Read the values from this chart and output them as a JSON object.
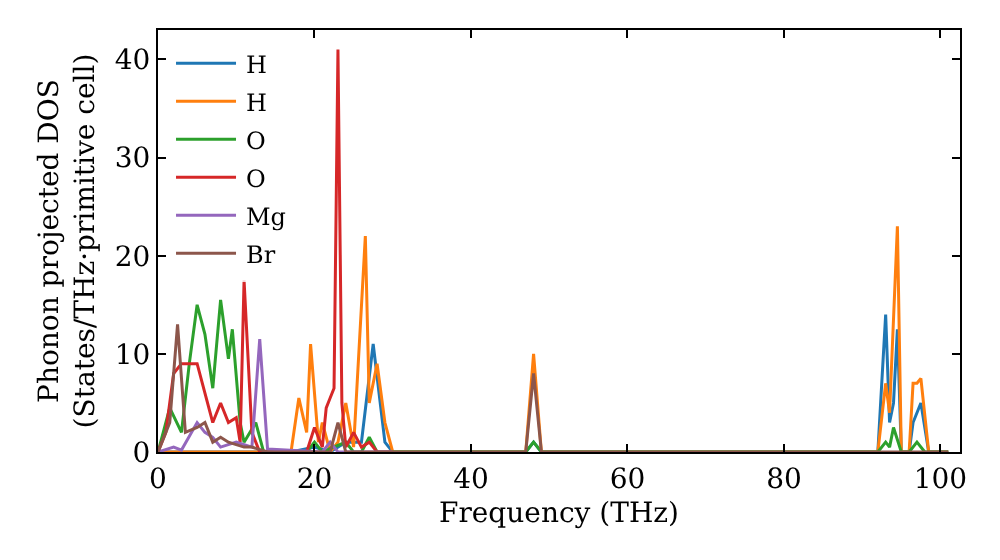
{
  "chart_data": {
    "type": "line",
    "xlabel": "Frequency (THz)",
    "ylabel": "Phonon projected DOS\n(States/THz·primitive cell)",
    "xlim": [
      0,
      102.5
    ],
    "ylim": [
      0,
      43
    ],
    "xticks": [
      0,
      20,
      40,
      60,
      80,
      100
    ],
    "yticks": [
      0,
      10,
      20,
      30,
      40
    ],
    "legend": "top left",
    "marker": "none",
    "line_style": "solid",
    "series": [
      {
        "name": "H",
        "color": "#1f77b4",
        "x": [
          0,
          17,
          20,
          22,
          24,
          26,
          27.5,
          29,
          30,
          47,
          48,
          49,
          92,
          93,
          93.5,
          94,
          94.5,
          95,
          96,
          96.5,
          97.5,
          98.5,
          101
        ],
        "values": [
          0,
          0,
          0.5,
          0,
          1,
          1,
          11,
          1,
          0,
          0,
          1,
          0,
          0,
          14,
          3,
          5,
          12.5,
          0,
          0,
          3,
          5,
          0,
          0
        ]
      },
      {
        "name": "H",
        "color": "#ff7f0e",
        "x": [
          0,
          17,
          18,
          19,
          19.5,
          20.5,
          21,
          22,
          23,
          24,
          25,
          26.5,
          27,
          28,
          29,
          30,
          47,
          48,
          49,
          92,
          93,
          93.5,
          94.5,
          95,
          96,
          96.5,
          97,
          97.5,
          98.5,
          101
        ],
        "values": [
          0,
          0,
          5.5,
          2,
          11,
          1,
          3,
          0,
          1,
          5,
          0.5,
          22,
          5,
          9,
          3,
          0,
          0,
          10,
          0,
          0,
          7,
          4,
          23,
          0,
          0,
          7,
          7,
          7.5,
          0,
          0
        ]
      },
      {
        "name": "O",
        "color": "#2ca02c",
        "x": [
          0,
          1.5,
          3,
          4,
          5,
          6,
          7,
          8,
          9,
          9.5,
          10.5,
          11,
          12.5,
          13.5,
          19,
          20,
          21,
          24,
          25,
          26,
          27,
          28,
          47,
          48,
          49,
          92,
          93,
          93.5,
          94,
          95,
          96,
          97,
          98,
          101
        ],
        "values": [
          0,
          4.5,
          2,
          9,
          15,
          12,
          6.5,
          15.5,
          9.5,
          12.5,
          3,
          1,
          3,
          0,
          0,
          1,
          0,
          1,
          0,
          0,
          1.5,
          0,
          0,
          1,
          0,
          0,
          1,
          0.5,
          2.5,
          0,
          0,
          1,
          0,
          0
        ]
      },
      {
        "name": "O",
        "color": "#d62728",
        "x": [
          0,
          1,
          2,
          3,
          4,
          5,
          6,
          7,
          8,
          9,
          10,
          10.5,
          11,
          12,
          13,
          19,
          20,
          21,
          21.5,
          22,
          22.5,
          23,
          23.5,
          24,
          25,
          26,
          27,
          28,
          30
        ],
        "values": [
          0,
          2,
          8,
          9,
          9,
          9,
          6,
          3,
          5,
          3,
          3.5,
          1,
          17.5,
          2,
          0,
          0,
          2.5,
          0.5,
          4.5,
          5.5,
          6.5,
          41,
          5,
          0.5,
          2,
          0.5,
          1,
          0,
          0
        ]
      },
      {
        "name": "Mg",
        "color": "#9467bd",
        "x": [
          0,
          2,
          3,
          5,
          6,
          7,
          8,
          10,
          12,
          13,
          14,
          21,
          22,
          23,
          30
        ],
        "values": [
          0,
          0.5,
          0.2,
          3,
          2,
          1.5,
          0.5,
          1,
          0.5,
          11.5,
          0.3,
          0,
          1,
          0,
          0
        ]
      },
      {
        "name": "Br",
        "color": "#8c564b",
        "x": [
          0,
          1.5,
          2.5,
          3.5,
          5,
          6,
          7,
          8,
          9,
          11,
          12,
          14,
          22,
          23,
          24,
          30,
          47,
          48,
          49,
          101
        ],
        "values": [
          0,
          3,
          13,
          2,
          2.5,
          3,
          1,
          1.5,
          1,
          0.5,
          0.5,
          0,
          0,
          3,
          0,
          0,
          0,
          8,
          0,
          0
        ]
      }
    ]
  }
}
